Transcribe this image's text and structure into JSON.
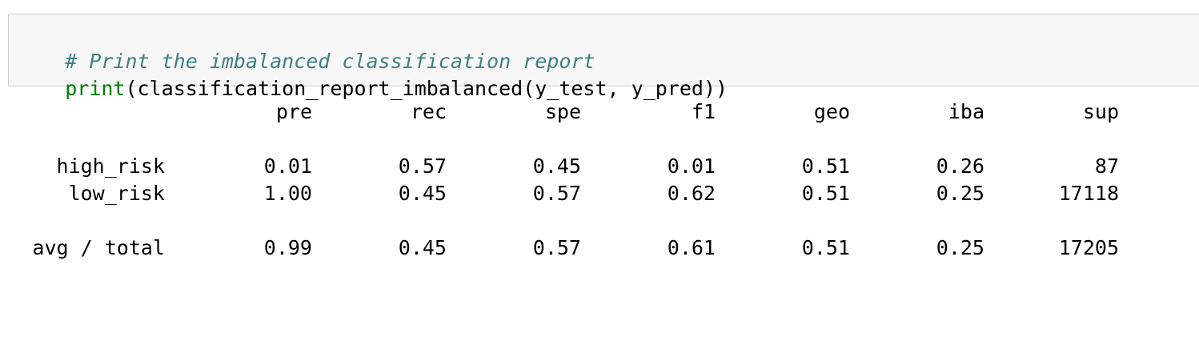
{
  "code_cell": {
    "comment": "# Print the imbalanced classification report",
    "builtin": "print",
    "call_rest": "(classification_report_imbalanced(y_test, y_pred))"
  },
  "report": {
    "headers": [
      "pre",
      "rec",
      "spe",
      "f1",
      "geo",
      "iba",
      "sup"
    ],
    "rows": [
      {
        "label": "high_risk",
        "values": [
          "0.01",
          "0.57",
          "0.45",
          "0.01",
          "0.51",
          "0.26",
          "87"
        ]
      },
      {
        "label": "low_risk",
        "values": [
          "1.00",
          "0.45",
          "0.57",
          "0.62",
          "0.51",
          "0.25",
          "17118"
        ]
      }
    ],
    "avg": {
      "label": "avg / total",
      "values": [
        "0.99",
        "0.45",
        "0.57",
        "0.61",
        "0.51",
        "0.25",
        "17205"
      ]
    }
  },
  "colors": {
    "comment": "#408080",
    "builtin": "#008000",
    "cell_background": "#f7f7f7",
    "cell_border": "#cfcfcf"
  }
}
